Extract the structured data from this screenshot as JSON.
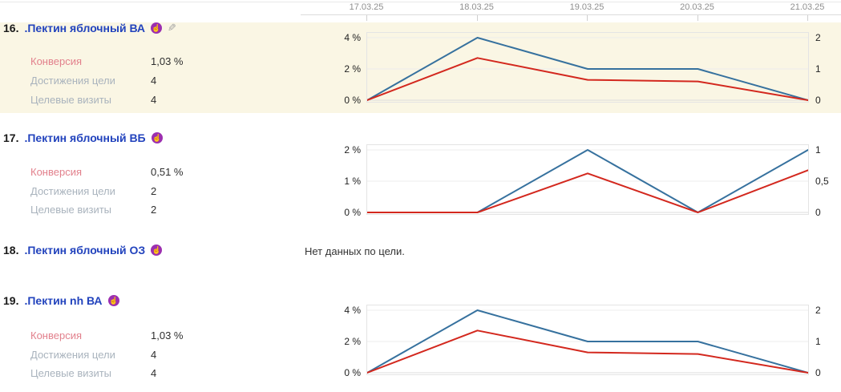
{
  "page": {
    "top_dates": [
      "17.03.25",
      "18.03.25",
      "19.03.25",
      "20.03.25",
      "21.03.25"
    ]
  },
  "colors": {
    "line_blue": "#36719e",
    "line_red": "#d3281e",
    "row_highlight": "#faf6e4",
    "link": "#2243bd",
    "goal_icon": "#9c2fb0",
    "label_conversion": "#e2808c",
    "label_gray": "#a9b3bd"
  },
  "icons": {
    "retargeting_hand": "☝",
    "edit_pencil": "✎"
  },
  "rows": [
    {
      "rank": "16.",
      "name": ".Пектин яблочный ВА",
      "metrics": [
        {
          "label": "Конверсия",
          "value": "1,03 %"
        },
        {
          "label": "Достижения цели",
          "value": "4"
        },
        {
          "label": "Целевые визиты",
          "value": "4"
        }
      ]
    },
    {
      "rank": "17.",
      "name": ".Пектин яблочный ВБ",
      "metrics": [
        {
          "label": "Конверсия",
          "value": "0,51 %"
        },
        {
          "label": "Достижения цели",
          "value": "2"
        },
        {
          "label": "Целевые визиты",
          "value": "2"
        }
      ]
    },
    {
      "rank": "18.",
      "name": ".Пектин яблочный ОЗ",
      "no_data_text": "Нет данных по цели."
    },
    {
      "rank": "19.",
      "name": ".Пектин nh ВА",
      "metrics": [
        {
          "label": "Конверсия",
          "value": "1,03 %"
        },
        {
          "label": "Достижения цели",
          "value": "4"
        },
        {
          "label": "Целевые визиты",
          "value": "4"
        }
      ]
    }
  ],
  "chart_data": [
    {
      "row_rank": "16.",
      "type": "line",
      "x": [
        "17.03.25",
        "18.03.25",
        "19.03.25",
        "20.03.25",
        "21.03.25"
      ],
      "left_axis": {
        "tick_labels": [
          "4 %",
          "2 %",
          "0 %"
        ],
        "max": 4
      },
      "right_axis": {
        "tick_labels": [
          "2",
          "1",
          "0"
        ],
        "max": 2
      },
      "grid": true,
      "series": [
        {
          "name": "Целевые визиты",
          "axis": "right",
          "color": "#36719e",
          "values": [
            0,
            2,
            1,
            1,
            0
          ]
        },
        {
          "name": "Конверсия",
          "axis": "left",
          "color": "#d3281e",
          "values": [
            0,
            2.7,
            1.3,
            1.2,
            0
          ]
        }
      ]
    },
    {
      "row_rank": "17.",
      "type": "line",
      "x": [
        "17.03.25",
        "18.03.25",
        "19.03.25",
        "20.03.25",
        "21.03.25"
      ],
      "left_axis": {
        "tick_labels": [
          "2 %",
          "1 %",
          "0 %"
        ],
        "max": 2
      },
      "right_axis": {
        "tick_labels": [
          "1",
          "0,5",
          "0"
        ],
        "max": 1
      },
      "grid": true,
      "series": [
        {
          "name": "Целевые визиты",
          "axis": "right",
          "color": "#36719e",
          "values": [
            0,
            0,
            1,
            0,
            1
          ]
        },
        {
          "name": "Конверсия",
          "axis": "left",
          "color": "#d3281e",
          "values": [
            0,
            0,
            1.25,
            0,
            1.35
          ]
        }
      ]
    },
    {
      "row_rank": "19.",
      "type": "line",
      "x": [
        "17.03.25",
        "18.03.25",
        "19.03.25",
        "20.03.25",
        "21.03.25"
      ],
      "left_axis": {
        "tick_labels": [
          "4 %",
          "2 %",
          "0 %"
        ],
        "max": 4
      },
      "right_axis": {
        "tick_labels": [
          "2",
          "1",
          "0"
        ],
        "max": 2
      },
      "grid": true,
      "series": [
        {
          "name": "Целевые визиты",
          "axis": "right",
          "color": "#36719e",
          "values": [
            0,
            2,
            1,
            1,
            0
          ]
        },
        {
          "name": "Конверсия",
          "axis": "left",
          "color": "#d3281e",
          "values": [
            0,
            2.7,
            1.3,
            1.2,
            0
          ]
        }
      ]
    }
  ]
}
